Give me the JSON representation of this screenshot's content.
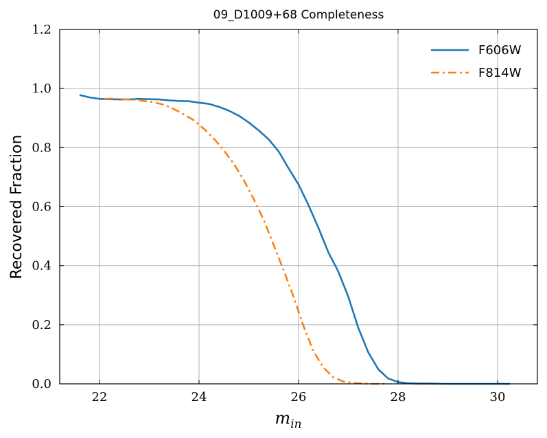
{
  "chart_data": {
    "type": "line",
    "title": "09_D1009+68 Completeness",
    "ylabel": "Recovered Fraction",
    "xlabel": {
      "main": "m",
      "sub": "in"
    },
    "xlim": [
      21.2,
      30.8
    ],
    "ylim": [
      0.0,
      1.2
    ],
    "xticks": [
      22,
      24,
      26,
      28,
      30
    ],
    "yticks": [
      0.0,
      0.2,
      0.4,
      0.6,
      0.8,
      1.0,
      1.2
    ],
    "xtick_labels": [
      "22",
      "24",
      "26",
      "28",
      "30"
    ],
    "ytick_labels": [
      "0.0",
      "0.2",
      "0.4",
      "0.6",
      "0.8",
      "1.0",
      "1.2"
    ],
    "grid": true,
    "legend_position": "top-right",
    "series": [
      {
        "name": "F606W",
        "color": "#1f77b4",
        "style": "solid",
        "x": [
          21.6,
          21.8,
          22.0,
          22.2,
          22.4,
          22.6,
          22.8,
          23.0,
          23.2,
          23.4,
          23.6,
          23.8,
          24.0,
          24.2,
          24.4,
          24.6,
          24.8,
          25.0,
          25.2,
          25.4,
          25.6,
          25.8,
          26.0,
          26.2,
          26.4,
          26.6,
          26.8,
          27.0,
          27.2,
          27.4,
          27.6,
          27.8,
          28.0,
          28.2,
          28.4,
          28.6,
          29.0,
          29.5,
          30.0,
          30.25
        ],
        "values": [
          0.978,
          0.97,
          0.965,
          0.964,
          0.963,
          0.963,
          0.965,
          0.964,
          0.963,
          0.96,
          0.958,
          0.957,
          0.952,
          0.948,
          0.938,
          0.925,
          0.908,
          0.885,
          0.858,
          0.828,
          0.787,
          0.73,
          0.675,
          0.605,
          0.528,
          0.445,
          0.38,
          0.295,
          0.19,
          0.107,
          0.05,
          0.018,
          0.006,
          0.002,
          0.001,
          0.001,
          0.0,
          0.0,
          0.0,
          0.0
        ]
      },
      {
        "name": "F814W",
        "color": "#ff7f0e",
        "style": "dashdot",
        "x": [
          22.1,
          22.3,
          22.5,
          22.7,
          22.9,
          23.1,
          23.3,
          23.5,
          23.7,
          23.9,
          24.1,
          24.3,
          24.5,
          24.7,
          24.9,
          25.1,
          25.3,
          25.5,
          25.7,
          25.9,
          26.1,
          26.3,
          26.5,
          26.7,
          26.9,
          27.1,
          27.3,
          27.5,
          27.8
        ],
        "values": [
          0.965,
          0.966,
          0.963,
          0.962,
          0.958,
          0.953,
          0.945,
          0.93,
          0.912,
          0.892,
          0.863,
          0.83,
          0.79,
          0.745,
          0.69,
          0.625,
          0.555,
          0.47,
          0.385,
          0.295,
          0.195,
          0.11,
          0.055,
          0.022,
          0.008,
          0.003,
          0.001,
          0.0,
          0.0
        ]
      }
    ]
  }
}
